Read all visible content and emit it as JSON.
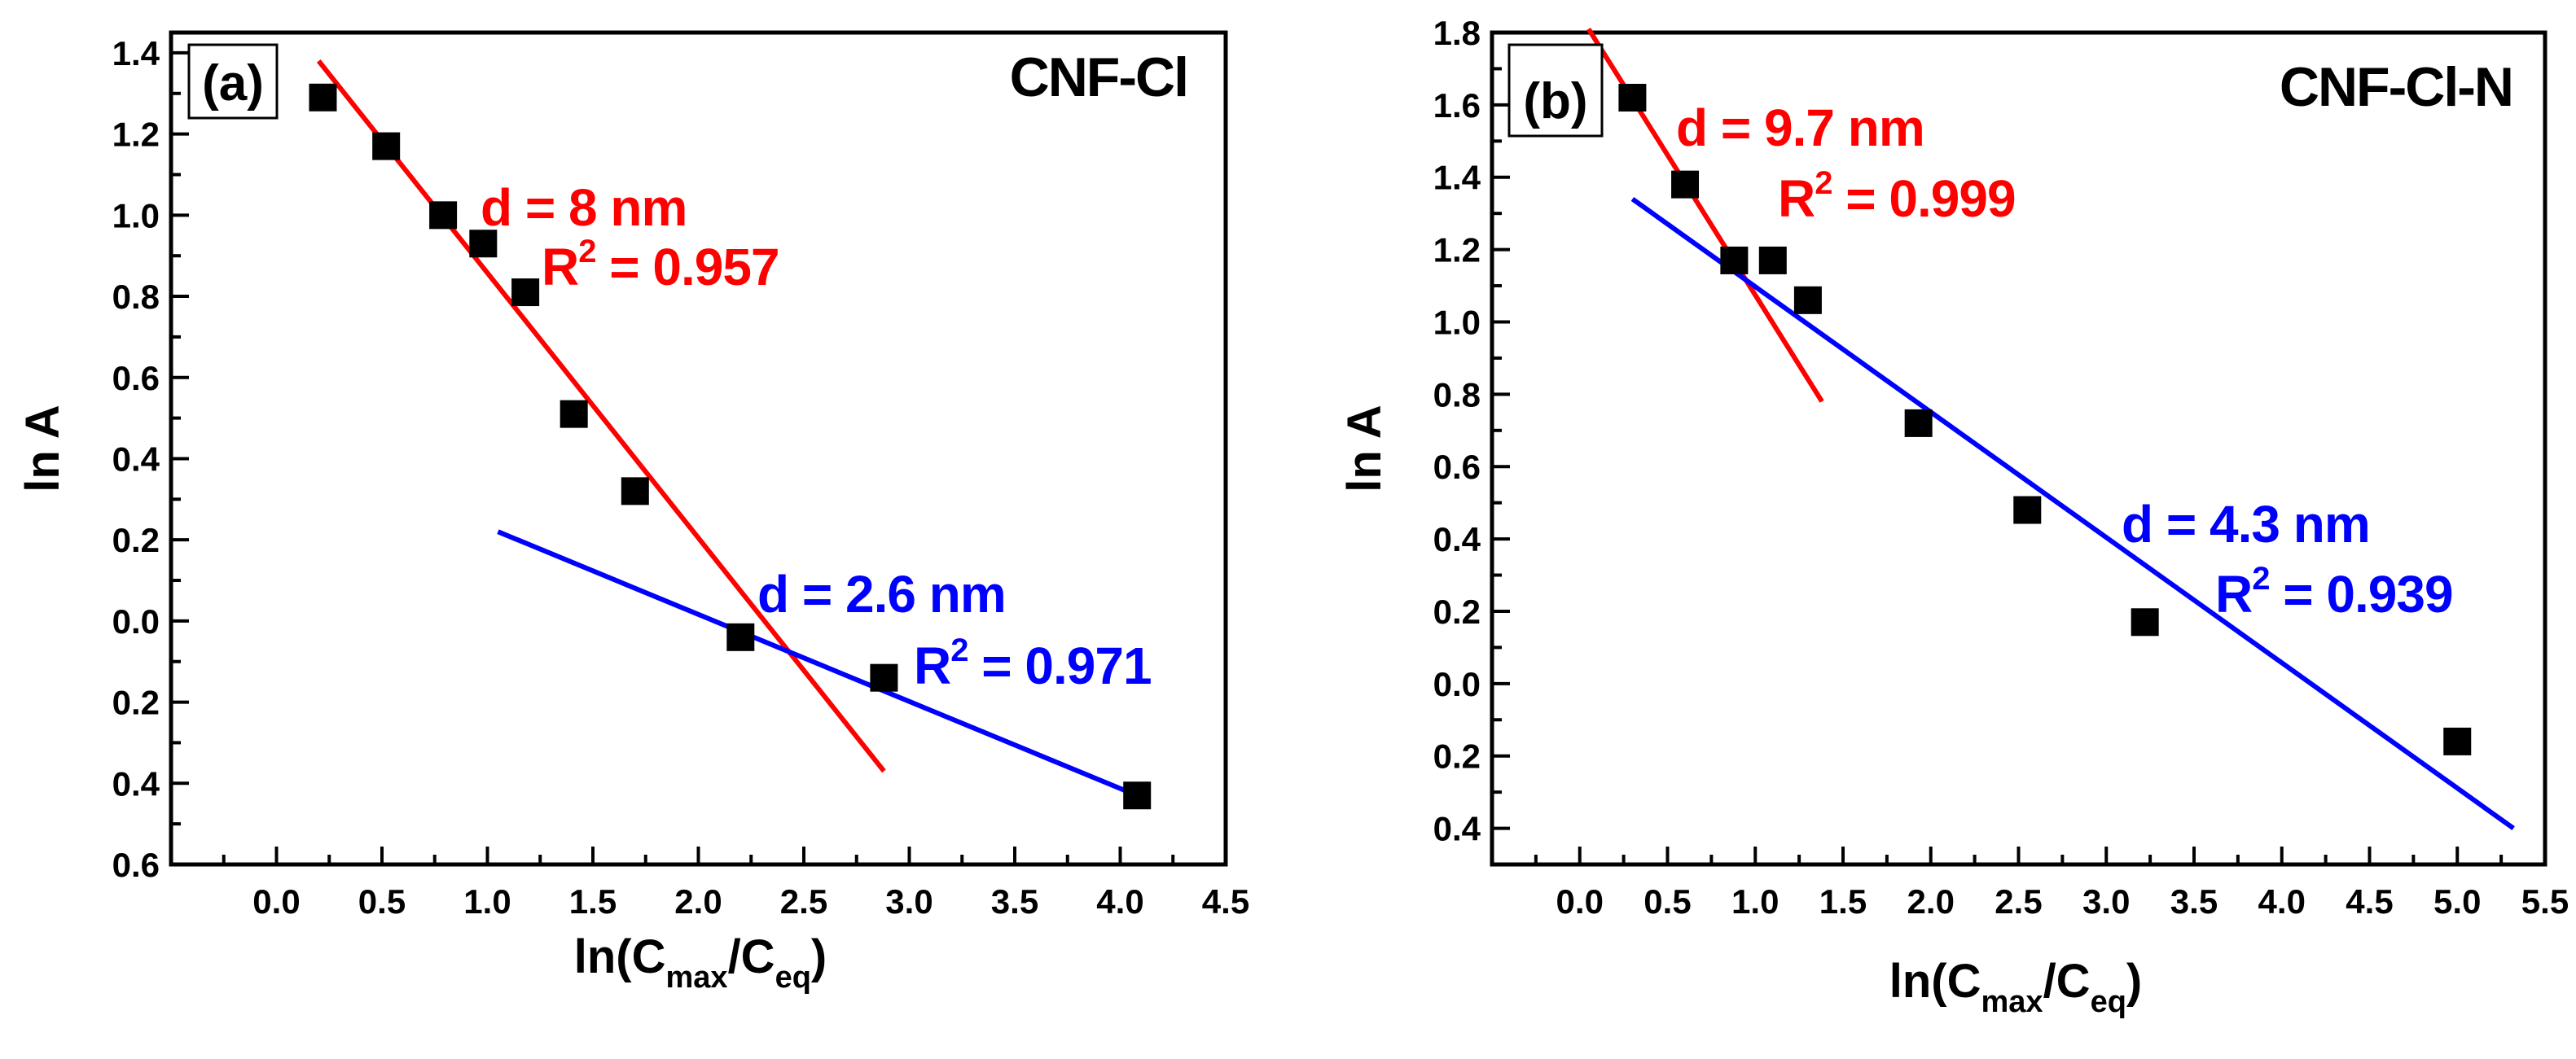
{
  "colors": {
    "axis": "#000000",
    "red": "#ff0000",
    "blue": "#0000ff",
    "marker": "#000000"
  },
  "chart_data": [
    {
      "type": "scatter",
      "panel_label": "(a)",
      "title": "CNF-Cl",
      "xlabel": {
        "base": "ln(C",
        "sub1": "max",
        "mid": "/C",
        "sub2": "eq",
        "end": ")"
      },
      "ylabel": "ln A",
      "xlim": [
        -0.5,
        4.5
      ],
      "ylim": [
        -0.6,
        1.45
      ],
      "x_ticks": [
        0.0,
        0.5,
        1.0,
        1.5,
        2.0,
        2.5,
        3.0,
        3.5,
        4.0,
        4.5
      ],
      "x_tick_labels": [
        "0.0",
        "0.5",
        "1.0",
        "1.5",
        "2.0",
        "2.5",
        "3.0",
        "3.5",
        "4.0",
        "4.5"
      ],
      "y_ticks": [
        -0.6,
        -0.4,
        -0.2,
        0.0,
        0.2,
        0.4,
        0.6,
        0.8,
        1.0,
        1.2,
        1.4
      ],
      "y_tick_labels": [
        "0.6",
        "0.4",
        "0.2",
        "0.0",
        "0.2",
        "0.4",
        "0.6",
        "0.8",
        "1.0",
        "1.2",
        "1.4"
      ],
      "points": [
        {
          "x": 0.22,
          "y": 1.29
        },
        {
          "x": 0.52,
          "y": 1.17
        },
        {
          "x": 0.79,
          "y": 1.0
        },
        {
          "x": 0.98,
          "y": 0.93
        },
        {
          "x": 1.18,
          "y": 0.81
        },
        {
          "x": 1.41,
          "y": 0.51
        },
        {
          "x": 1.7,
          "y": 0.32
        },
        {
          "x": 2.2,
          "y": -0.04
        },
        {
          "x": 2.88,
          "y": -0.14
        },
        {
          "x": 4.08,
          "y": -0.43
        }
      ],
      "fits": [
        {
          "color": "red",
          "x1": 0.2,
          "y1": 1.38,
          "x2": 2.88,
          "y2": -0.37
        },
        {
          "color": "blue",
          "x1": 1.05,
          "y1": 0.22,
          "x2": 4.08,
          "y2": -0.43
        }
      ],
      "annotations": [
        {
          "color": "red",
          "d_text": "d = 8 nm",
          "r_pre": "R",
          "r_sup": "2",
          "r_post": " = 0.957"
        },
        {
          "color": "blue",
          "d_text": "d = 2.6 nm",
          "r_pre": "R",
          "r_sup": "2",
          "r_post": " = 0.971"
        }
      ]
    },
    {
      "type": "scatter",
      "panel_label": "(b)",
      "title": "CNF-Cl-N",
      "xlabel": {
        "base": "ln(C",
        "sub1": "max",
        "mid": "/C",
        "sub2": "eq",
        "end": ")"
      },
      "ylabel": "ln A",
      "xlim": [
        -0.5,
        5.5
      ],
      "ylim": [
        -0.5,
        1.8
      ],
      "x_ticks": [
        0.0,
        0.5,
        1.0,
        1.5,
        2.0,
        2.5,
        3.0,
        3.5,
        4.0,
        4.5,
        5.0,
        5.5
      ],
      "x_tick_labels": [
        "0.0",
        "0.5",
        "1.0",
        "1.5",
        "2.0",
        "2.5",
        "3.0",
        "3.5",
        "4.0",
        "4.5",
        "5.0",
        "5.5"
      ],
      "y_ticks": [
        -0.4,
        -0.2,
        0.0,
        0.2,
        0.4,
        0.6,
        0.8,
        1.0,
        1.2,
        1.4,
        1.6,
        1.8
      ],
      "y_tick_labels": [
        "0.4",
        "0.2",
        "0.0",
        "0.2",
        "0.4",
        "0.6",
        "0.8",
        "1.0",
        "1.2",
        "1.4",
        "1.6",
        "1.8"
      ],
      "points": [
        {
          "x": 0.3,
          "y": 1.62
        },
        {
          "x": 0.6,
          "y": 1.38
        },
        {
          "x": 0.88,
          "y": 1.17
        },
        {
          "x": 1.1,
          "y": 1.17
        },
        {
          "x": 1.3,
          "y": 1.06
        },
        {
          "x": 1.93,
          "y": 0.72
        },
        {
          "x": 2.55,
          "y": 0.48
        },
        {
          "x": 3.22,
          "y": 0.17
        },
        {
          "x": 5.0,
          "y": -0.16
        }
      ],
      "fits": [
        {
          "color": "red",
          "x1": 0.05,
          "y1": 1.81,
          "x2": 1.38,
          "y2": 0.78
        },
        {
          "color": "blue",
          "x1": 0.3,
          "y1": 1.34,
          "x2": 5.32,
          "y2": -0.4
        }
      ],
      "annotations": [
        {
          "color": "red",
          "d_text": "d = 9.7 nm",
          "r_pre": "R",
          "r_sup": "2",
          "r_post": " = 0.999"
        },
        {
          "color": "blue",
          "d_text": "d = 4.3 nm",
          "r_pre": "R",
          "r_sup": "2",
          "r_post": " = 0.939"
        }
      ]
    }
  ]
}
